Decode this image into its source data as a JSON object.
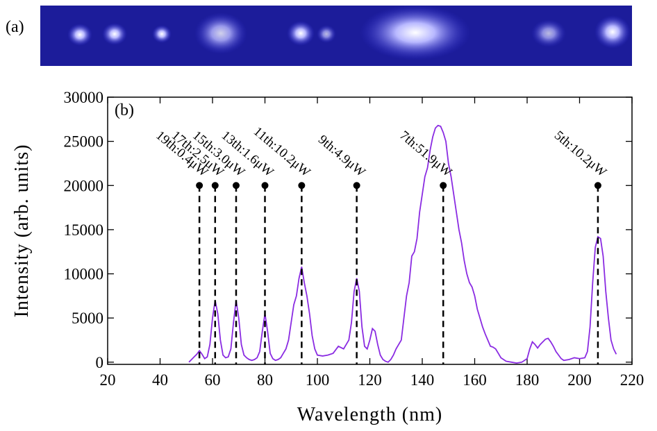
{
  "panel_a_label": "(a)",
  "chart_data": {
    "type": "line",
    "panel_label": "(b)",
    "xlabel": "Wavelength (nm)",
    "ylabel": "Intensity (arb. units)",
    "xlim": [
      20,
      220
    ],
    "ylim": [
      -250,
      30000
    ],
    "xticks": [
      20,
      40,
      60,
      80,
      100,
      120,
      140,
      160,
      180,
      200,
      220
    ],
    "yticks": [
      0,
      5000,
      10000,
      15000,
      20000,
      25000,
      30000
    ],
    "series": [
      {
        "color": "#8a2be2",
        "x": [
          51,
          52,
          53,
          54,
          55,
          56,
          57,
          58,
          59,
          60,
          61,
          62,
          63,
          64,
          65,
          66,
          67,
          68,
          69,
          70,
          71,
          72,
          73,
          74,
          75,
          76,
          77,
          78,
          79,
          80,
          81,
          82,
          83,
          84,
          85,
          86,
          87,
          88,
          89,
          90,
          91,
          92,
          93,
          94,
          95,
          96,
          97,
          98,
          99,
          100,
          102,
          104,
          106,
          108,
          110,
          112,
          113,
          114,
          115,
          116,
          117,
          118,
          119,
          120,
          121,
          122,
          123,
          124,
          125,
          126,
          127,
          128,
          129,
          130,
          132,
          133,
          134,
          135,
          136,
          137,
          138,
          139,
          140,
          141,
          142,
          143,
          144,
          145,
          146,
          147,
          148,
          149,
          150,
          151,
          152,
          153,
          154,
          155,
          156,
          157,
          158,
          159,
          160,
          161,
          162,
          163,
          164,
          165,
          166,
          167,
          168,
          169,
          170,
          172,
          174,
          176,
          178,
          179,
          180,
          181,
          182,
          183,
          184,
          185,
          186,
          187,
          188,
          189,
          190,
          191,
          192,
          193,
          194,
          196,
          198,
          200,
          202,
          203,
          204,
          205,
          206,
          207,
          208,
          209,
          210,
          211,
          212,
          213,
          214
        ],
        "values": [
          0,
          300,
          600,
          900,
          1300,
          900,
          400,
          600,
          2000,
          5000,
          7000,
          5500,
          2500,
          800,
          500,
          600,
          1500,
          4500,
          7000,
          5000,
          2000,
          800,
          500,
          300,
          200,
          300,
          500,
          1200,
          3500,
          5500,
          3500,
          1000,
          400,
          200,
          300,
          500,
          1000,
          1500,
          2500,
          4500,
          6500,
          7500,
          9500,
          10800,
          9000,
          7500,
          5500,
          3000,
          1500,
          800,
          700,
          800,
          1000,
          1800,
          1500,
          2500,
          4500,
          8000,
          9500,
          8000,
          4000,
          1800,
          1500,
          2500,
          3800,
          3500,
          2000,
          800,
          300,
          100,
          0,
          300,
          800,
          1500,
          2500,
          5000,
          7500,
          9000,
          12000,
          12500,
          14000,
          17000,
          19000,
          21000,
          22000,
          24000,
          25500,
          26500,
          26800,
          26700,
          26000,
          25000,
          22500,
          21000,
          19000,
          17000,
          15000,
          13500,
          11500,
          10000,
          9000,
          8500,
          7500,
          6000,
          5000,
          4000,
          3200,
          2500,
          1800,
          1700,
          1500,
          1000,
          500,
          100,
          0,
          -100,
          0,
          200,
          400,
          1500,
          2300,
          2000,
          1600,
          2000,
          2300,
          2600,
          2700,
          2300,
          1800,
          1200,
          800,
          400,
          200,
          300,
          500,
          400,
          500,
          1200,
          4000,
          9000,
          13000,
          14200,
          14000,
          12000,
          8000,
          5000,
          2500,
          1500,
          900
        ]
      }
    ],
    "annotations": [
      {
        "x": 55,
        "y": 20000,
        "label": "19th:0.4μW"
      },
      {
        "x": 61,
        "y": 20000,
        "label": "17th:2.5μW"
      },
      {
        "x": 69,
        "y": 20000,
        "label": "15th:3.0μW"
      },
      {
        "x": 80,
        "y": 20000,
        "label": "13th:1.6μW"
      },
      {
        "x": 94,
        "y": 20000,
        "label": "11th:10.2μW"
      },
      {
        "x": 115,
        "y": 20000,
        "label": "9th:4.9μW"
      },
      {
        "x": 148,
        "y": 20000,
        "label": "7th:51.9μW"
      },
      {
        "x": 207,
        "y": 20000,
        "label": "5th:10.2μW"
      }
    ]
  }
}
